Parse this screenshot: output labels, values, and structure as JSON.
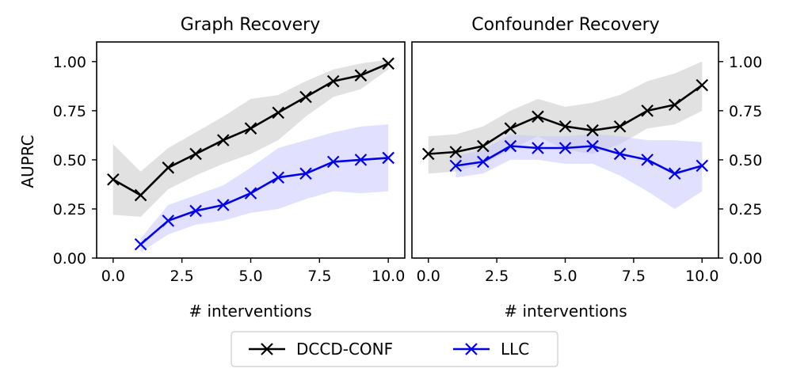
{
  "figure": {
    "shared_ylabel": "AUPRC",
    "legend_entries": [
      {
        "label": "DCCD-CONF",
        "color": "#000000"
      },
      {
        "label": "LLC",
        "color": "#0000ee"
      }
    ],
    "legend_position": "bottom-center"
  },
  "chart_data": [
    {
      "type": "line",
      "title": "Graph Recovery",
      "xlabel": "# interventions",
      "ylabel": "AUPRC",
      "xlim": [
        -0.6,
        10.6
      ],
      "ylim": [
        0.0,
        1.1
      ],
      "xticks": [
        0,
        2.5,
        5,
        7.5,
        10
      ],
      "xtick_labels": [
        "0.0",
        "2.5",
        "5.0",
        "7.5",
        "10.0"
      ],
      "yticks": [
        0,
        0.25,
        0.5,
        0.75,
        1.0
      ],
      "ytick_labels": [
        "0.00",
        "0.25",
        "0.50",
        "0.75",
        "1.00"
      ],
      "ytick_side": "left",
      "series": [
        {
          "name": "DCCD-CONF",
          "color": "#000000",
          "band_color": "#c8c8c8",
          "x": [
            0,
            1,
            2,
            3,
            4,
            5,
            6,
            7,
            8,
            9,
            10
          ],
          "y": [
            0.4,
            0.32,
            0.46,
            0.53,
            0.6,
            0.66,
            0.74,
            0.82,
            0.9,
            0.93,
            0.99
          ],
          "lower": [
            0.22,
            0.21,
            0.35,
            0.42,
            0.48,
            0.53,
            0.6,
            0.72,
            0.82,
            0.86,
            0.96
          ],
          "upper": [
            0.58,
            0.44,
            0.56,
            0.64,
            0.72,
            0.81,
            0.83,
            0.9,
            0.96,
            0.99,
            1.01
          ]
        },
        {
          "name": "LLC",
          "color": "#0000ee",
          "band_color": "#c8c8ff",
          "x": [
            1,
            2,
            3,
            4,
            5,
            6,
            7,
            8,
            9,
            10
          ],
          "y": [
            0.07,
            0.19,
            0.24,
            0.27,
            0.33,
            0.41,
            0.43,
            0.49,
            0.5,
            0.51
          ],
          "lower": [
            0.03,
            0.12,
            0.17,
            0.19,
            0.23,
            0.25,
            0.3,
            0.34,
            0.33,
            0.34
          ],
          "upper": [
            0.1,
            0.27,
            0.32,
            0.37,
            0.46,
            0.56,
            0.6,
            0.64,
            0.67,
            0.68
          ]
        }
      ]
    },
    {
      "type": "line",
      "title": "Confounder Recovery",
      "xlabel": "# interventions",
      "ylabel": "",
      "xlim": [
        -0.6,
        10.6
      ],
      "ylim": [
        0.0,
        1.1
      ],
      "xticks": [
        0,
        2.5,
        5,
        7.5,
        10
      ],
      "xtick_labels": [
        "0.0",
        "2.5",
        "5.0",
        "7.5",
        "10.0"
      ],
      "yticks": [
        0,
        0.25,
        0.5,
        0.75,
        1.0
      ],
      "ytick_labels": [
        "0.00",
        "0.25",
        "0.50",
        "0.75",
        "1.00"
      ],
      "ytick_side": "right",
      "series": [
        {
          "name": "DCCD-CONF",
          "color": "#000000",
          "band_color": "#c8c8c8",
          "x": [
            0,
            1,
            2,
            3,
            4,
            5,
            6,
            7,
            8,
            9,
            10
          ],
          "y": [
            0.53,
            0.54,
            0.57,
            0.66,
            0.72,
            0.67,
            0.65,
            0.67,
            0.75,
            0.78,
            0.88
          ],
          "lower": [
            0.43,
            0.44,
            0.48,
            0.55,
            0.62,
            0.55,
            0.53,
            0.58,
            0.66,
            0.68,
            0.75
          ],
          "upper": [
            0.62,
            0.63,
            0.67,
            0.75,
            0.81,
            0.77,
            0.79,
            0.83,
            0.9,
            0.94,
            1.0
          ]
        },
        {
          "name": "LLC",
          "color": "#0000ee",
          "band_color": "#c8c8ff",
          "x": [
            1,
            2,
            3,
            4,
            5,
            6,
            7,
            8,
            9,
            10
          ],
          "y": [
            0.47,
            0.49,
            0.57,
            0.56,
            0.56,
            0.57,
            0.53,
            0.5,
            0.43,
            0.47
          ],
          "lower": [
            0.41,
            0.43,
            0.5,
            0.5,
            0.48,
            0.48,
            0.42,
            0.34,
            0.25,
            0.34
          ],
          "upper": [
            0.52,
            0.55,
            0.63,
            0.62,
            0.62,
            0.63,
            0.62,
            0.6,
            0.6,
            0.59
          ]
        }
      ]
    }
  ]
}
